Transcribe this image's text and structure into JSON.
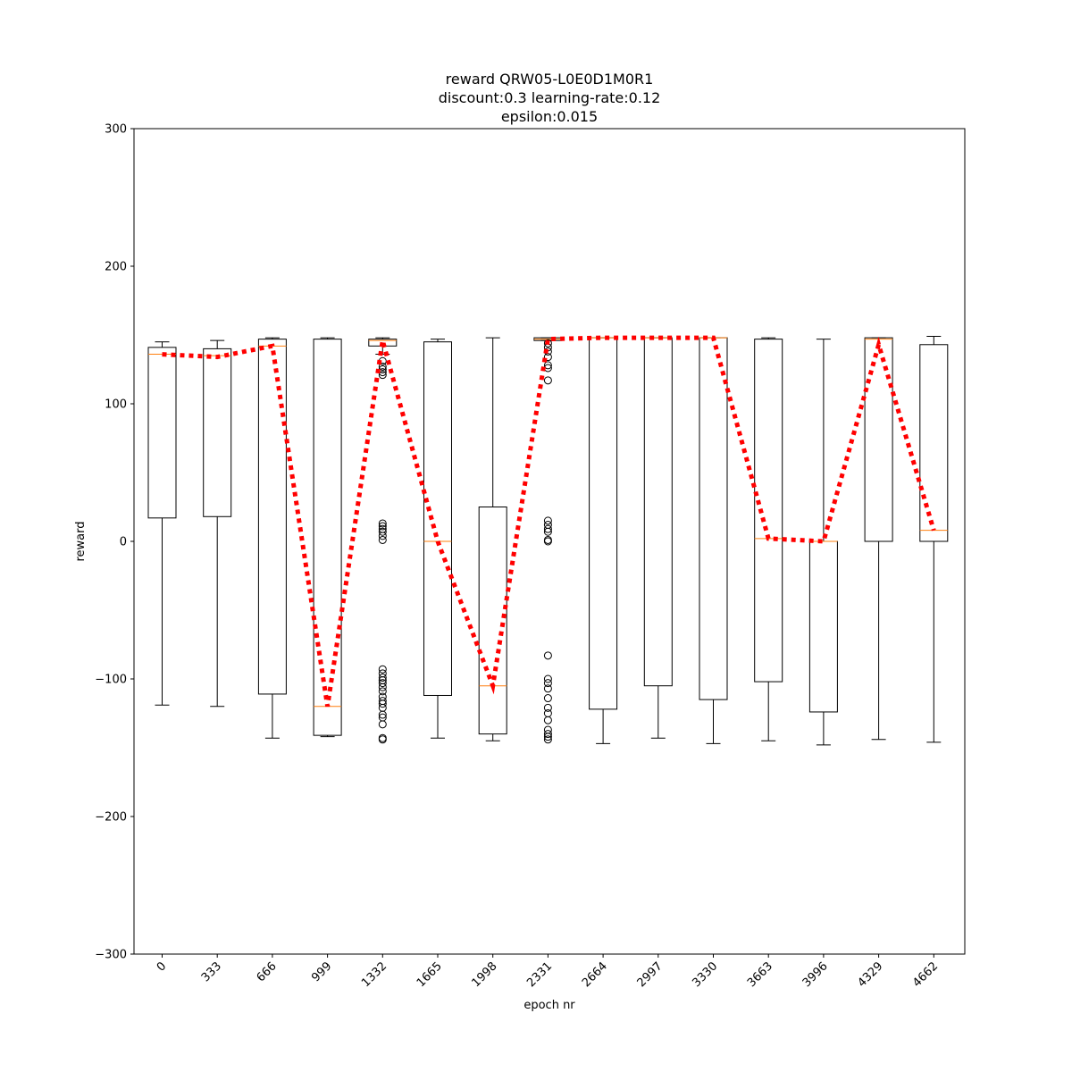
{
  "chart_data": {
    "type": "box",
    "title_lines": [
      "reward QRW05-L0E0D1M0R1",
      "discount:0.3 learning-rate:0.12",
      "epsilon:0.015"
    ],
    "xlabel": "epoch nr",
    "ylabel": "reward",
    "ylim": [
      -300,
      300
    ],
    "yticks": [
      -300,
      -200,
      -100,
      0,
      100,
      200,
      300
    ],
    "ytick_labels": [
      "−300",
      "−200",
      "−100",
      "0",
      "100",
      "200",
      "300"
    ],
    "categories": [
      "0",
      "333",
      "666",
      "999",
      "1332",
      "1665",
      "1998",
      "2331",
      "2664",
      "2997",
      "3330",
      "3663",
      "3996",
      "4329",
      "4662"
    ],
    "boxes": [
      {
        "whislo": -119,
        "q1": 17,
        "med": 136,
        "q3": 141,
        "whishi": 145,
        "fliers": []
      },
      {
        "whislo": -120,
        "q1": 18,
        "med": 135,
        "q3": 140,
        "whishi": 146,
        "fliers": []
      },
      {
        "whislo": -143,
        "q1": -111,
        "med": 142,
        "q3": 147,
        "whishi": 148,
        "fliers": []
      },
      {
        "whislo": -142,
        "q1": -141,
        "med": -120,
        "q3": 147,
        "whishi": 148,
        "fliers": []
      },
      {
        "whislo": 136,
        "q1": 142,
        "med": 146,
        "q3": 147,
        "whishi": 148,
        "fliers": [
          131,
          127,
          125,
          123,
          121,
          13,
          11,
          9,
          7,
          4,
          1,
          -93,
          -96,
          -99,
          -101,
          -103,
          -106,
          -109,
          -113,
          -116,
          -118,
          -121,
          -126,
          -128,
          -133,
          -143,
          -144
        ]
      },
      {
        "whislo": -143,
        "q1": -112,
        "med": 0,
        "q3": 145,
        "whishi": 147,
        "fliers": []
      },
      {
        "whislo": -145,
        "q1": -140,
        "med": -105,
        "q3": 25,
        "whishi": 148,
        "fliers": []
      },
      {
        "whislo": 146,
        "q1": 146,
        "med": 147,
        "q3": 148,
        "whishi": 148,
        "fliers": [
          144,
          141,
          138,
          134,
          128,
          126,
          117,
          15,
          12,
          9,
          7,
          1,
          0,
          -83,
          -100,
          -103,
          -107,
          -114,
          -121,
          -125,
          -130,
          -137,
          -140,
          -142,
          -144
        ]
      },
      {
        "whislo": -147,
        "q1": -122,
        "med": 148,
        "q3": 148,
        "whishi": 148,
        "fliers": []
      },
      {
        "whislo": -143,
        "q1": -105,
        "med": 148,
        "q3": 148,
        "whishi": 148,
        "fliers": []
      },
      {
        "whislo": -147,
        "q1": -115,
        "med": 148,
        "q3": 148,
        "whishi": 148,
        "fliers": []
      },
      {
        "whislo": -145,
        "q1": -102,
        "med": 2,
        "q3": 147,
        "whishi": 148,
        "fliers": []
      },
      {
        "whislo": -148,
        "q1": -124,
        "med": 0,
        "q3": 0,
        "whishi": 147,
        "fliers": []
      },
      {
        "whislo": -144,
        "q1": 0,
        "med": 147,
        "q3": 148,
        "whishi": 148,
        "fliers": []
      },
      {
        "whislo": -146,
        "q1": 0,
        "med": 8,
        "q3": 143,
        "whishi": 149,
        "fliers": []
      }
    ],
    "mean_line": {
      "values": [
        136,
        134,
        142,
        -120,
        146,
        0,
        -105,
        147,
        148,
        148,
        148,
        2,
        0,
        143,
        8
      ],
      "color": "#ff0000",
      "style": "dotted"
    },
    "box_color": "#000000",
    "median_color": "#ff7f0e",
    "grid": false,
    "legend": "none"
  }
}
